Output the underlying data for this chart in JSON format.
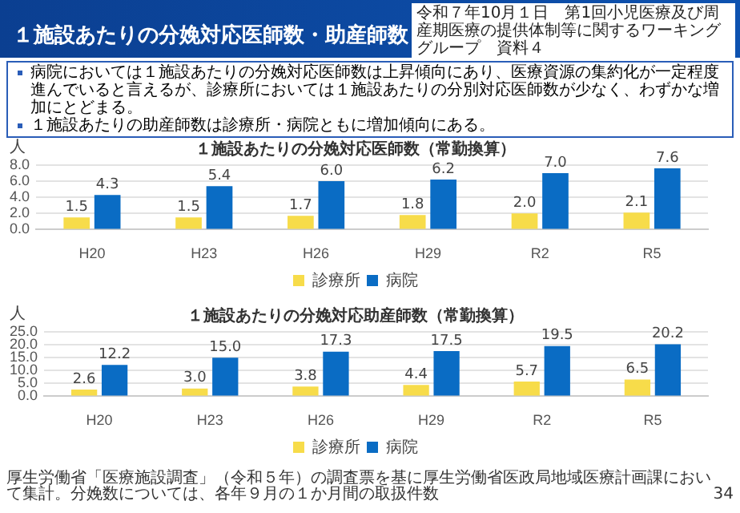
{
  "chart_data": [
    {
      "type": "other",
      "title": "１施設あたりの分娩対応医師数・助産師数",
      "annotations": [
        "令和７年10月１日　第1回小児医療及び周産期医療の提供体制等に関するワーキンググループ　資料４",
        "病院においては１施設あたりの分娩対応医師数は上昇傾向にあり、医療資源の集約化が一定程度進んでいると言えるが、診療所においては１施設あたりの分別対応医師数が少なく、わずかな増加にとどまる。",
        "１施設あたりの助産師数は診療所・病院ともに増加傾向にある。"
      ]
    },
    {
      "type": "bar",
      "title": "１施設あたりの分娩対応医師数（常勤換算）",
      "ylabel": "人",
      "categories": [
        "H20",
        "H23",
        "H26",
        "H29",
        "R2",
        "R5"
      ],
      "series": [
        {
          "name": "診療所",
          "color": "#f7dc4a",
          "values": [
            1.5,
            1.5,
            1.7,
            1.8,
            2.0,
            2.1
          ],
          "value_labels": [
            "1.5",
            "1.5",
            "1.7",
            "1.8",
            "2.0",
            "2.1"
          ]
        },
        {
          "name": "病院",
          "color": "#0a6cc4",
          "values": [
            4.3,
            5.4,
            6.0,
            6.2,
            7.0,
            7.6
          ],
          "value_labels": [
            "4.3",
            "5.4",
            "6.0",
            "6.2",
            "7.0",
            "7.6"
          ]
        }
      ],
      "ylim": [
        0,
        8
      ],
      "yticks": [
        {
          "value": 0,
          "label": "0.0"
        },
        {
          "value": 2,
          "label": "2.0"
        },
        {
          "value": 4,
          "label": "4.0"
        },
        {
          "value": 6,
          "label": "6.0"
        },
        {
          "value": 8,
          "label": "8.0"
        }
      ],
      "grid": "y",
      "legend": "bottom"
    },
    {
      "type": "bar",
      "title": "１施設あたりの分娩対応助産師数（常勤換算）",
      "ylabel": "人",
      "categories": [
        "H20",
        "H23",
        "H26",
        "H29",
        "R2",
        "R5"
      ],
      "series": [
        {
          "name": "診療所",
          "color": "#f7dc4a",
          "values": [
            2.6,
            3.0,
            3.8,
            4.4,
            5.7,
            6.5
          ],
          "value_labels": [
            "2.6",
            "3.0",
            "3.8",
            "4.4",
            "5.7",
            "6.5"
          ]
        },
        {
          "name": "病院",
          "color": "#0a6cc4",
          "values": [
            12.2,
            15.0,
            17.3,
            17.5,
            19.5,
            20.2
          ],
          "value_labels": [
            "12.2",
            "15.0",
            "17.3",
            "17.5",
            "19.5",
            "20.2"
          ]
        }
      ],
      "ylim": [
        0,
        25
      ],
      "yticks": [
        {
          "value": 0,
          "label": "0.0"
        },
        {
          "value": 5,
          "label": "5.0"
        },
        {
          "value": 10,
          "label": "10.0"
        },
        {
          "value": 15,
          "label": "15.0"
        },
        {
          "value": 20,
          "label": "20.0"
        },
        {
          "value": 25,
          "label": "25.0"
        }
      ],
      "grid": "y",
      "legend": "bottom",
      "annotations": [
        "厚生労働省「医療施設調査」（令和５年）の調査票を基に厚生労働省医政局地域医療計画課において集計。分娩数については、各年９月の１か月間の取扱件数",
        "34"
      ]
    }
  ]
}
